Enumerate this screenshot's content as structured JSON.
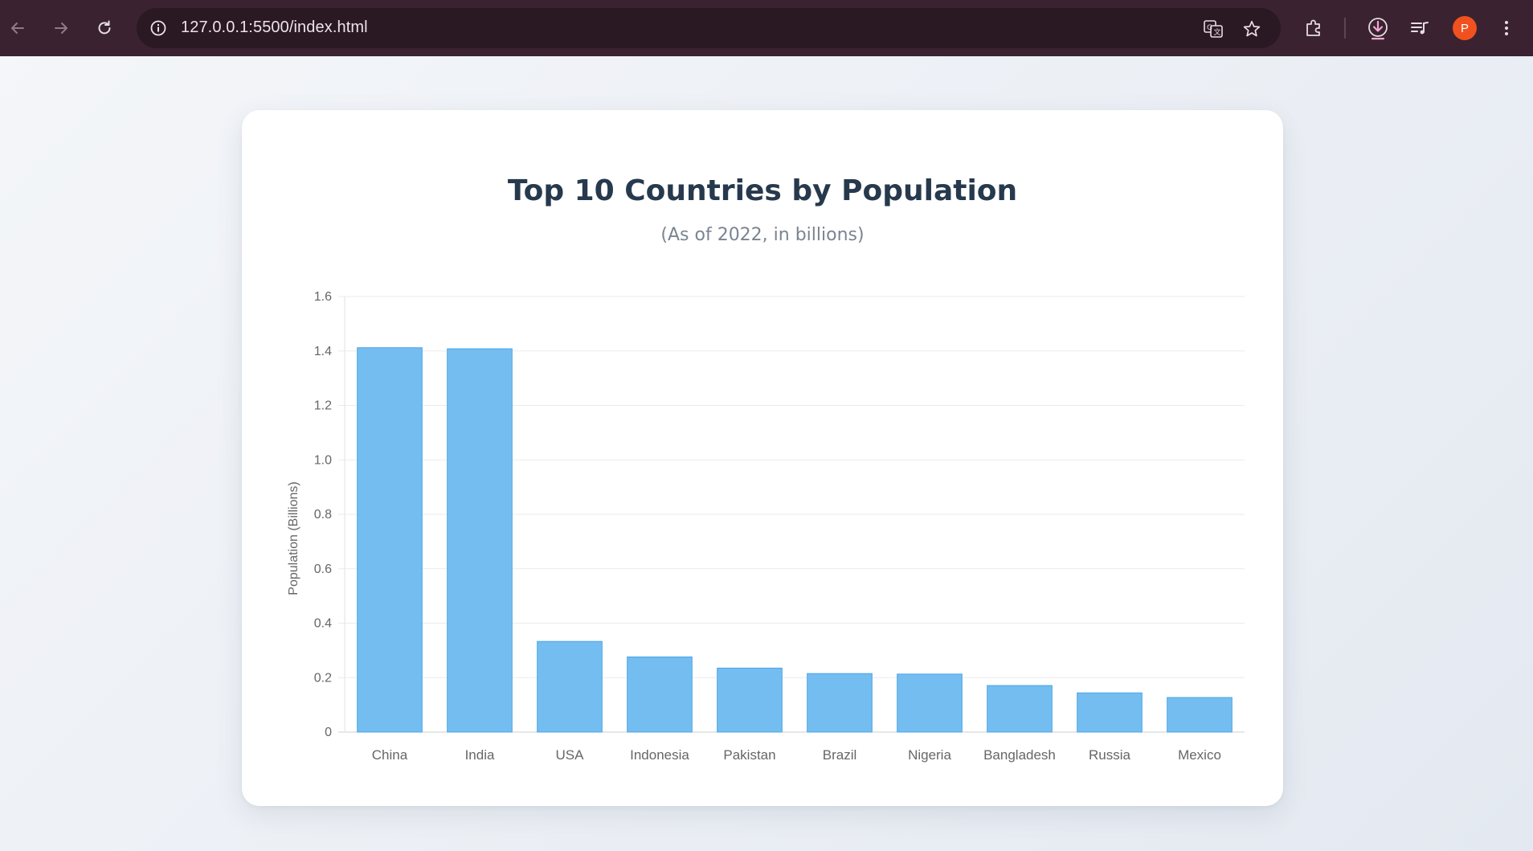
{
  "browser": {
    "url": "127.0.0.1:5500/index.html",
    "avatar_letter": "P",
    "accent_avatar": "#f0511f"
  },
  "chart_data": {
    "type": "bar",
    "title": "Top 10 Countries by Population",
    "subtitle": "(As of 2022, in billions)",
    "ylabel": "Population (Billions)",
    "xlabel": "",
    "categories": [
      "China",
      "India",
      "USA",
      "Indonesia",
      "Pakistan",
      "Brazil",
      "Nigeria",
      "Bangladesh",
      "Russia",
      "Mexico"
    ],
    "values": [
      1.412,
      1.408,
      0.333,
      0.276,
      0.235,
      0.215,
      0.213,
      0.171,
      0.144,
      0.127
    ],
    "ylim": [
      0,
      1.6
    ],
    "yticks": [
      "0",
      "0.2",
      "0.4",
      "0.6",
      "0.8",
      "1.0",
      "1.2",
      "1.4",
      "1.6"
    ],
    "ytick_values": [
      0,
      0.2,
      0.4,
      0.6,
      0.8,
      1.0,
      1.2,
      1.4,
      1.6
    ],
    "grid": true,
    "legend": "none",
    "bar_color": "#74bdf0",
    "bar_border_color": "#4aa5e8"
  }
}
